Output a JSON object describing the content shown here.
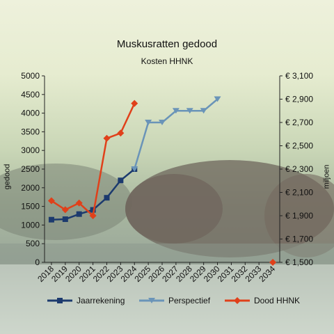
{
  "chart_data": {
    "type": "line",
    "title": "Muskusratten gedood",
    "subtitle": "Kosten HHNK",
    "ylabel": "gedood",
    "y2label": "miljoen",
    "categories": [
      "2018",
      "2019",
      "2020",
      "2021",
      "2022",
      "2023",
      "2024",
      "2025",
      "2026",
      "2027",
      "2028",
      "2029",
      "2030",
      "2031",
      "2032",
      "2033",
      "2034"
    ],
    "ylim": [
      0,
      5000
    ],
    "yticks": [
      "0",
      "500",
      "1000",
      "1500",
      "2000",
      "2500",
      "3000",
      "3500",
      "4000",
      "4500",
      "5000"
    ],
    "y2lim": [
      1500,
      3100
    ],
    "y2ticks": [
      "€ 1,500",
      "€ 1,700",
      "€ 1,900",
      "€ 2,100",
      "€ 2,300",
      "€ 2,500",
      "€ 2,700",
      "€ 2,900",
      "€ 3,100"
    ],
    "series": [
      {
        "name": "Jaarrekening",
        "axis": "y2",
        "color": "#1c3a6e",
        "marker": "square",
        "values": [
          1866,
          1870,
          1914,
          1950,
          2054,
          2203,
          2300,
          null,
          null,
          null,
          null,
          null,
          null,
          null,
          null,
          null,
          null
        ]
      },
      {
        "name": "Perspectief",
        "axis": "y2",
        "color": "#6a94b8",
        "marker": "triangle",
        "values": [
          null,
          null,
          null,
          null,
          null,
          null,
          2300,
          2700,
          2700,
          2800,
          2800,
          2800,
          2900,
          null,
          null,
          null,
          null
        ]
      },
      {
        "name": "Dood HHNK",
        "axis": "y",
        "color": "#e0401a",
        "marker": "diamond",
        "values": [
          1650,
          1410,
          1590,
          1250,
          3325,
          3465,
          4260,
          null,
          null,
          null,
          null,
          null,
          null,
          null,
          null,
          null,
          0
        ]
      }
    ],
    "legend_position": "bottom",
    "grid": false
  }
}
